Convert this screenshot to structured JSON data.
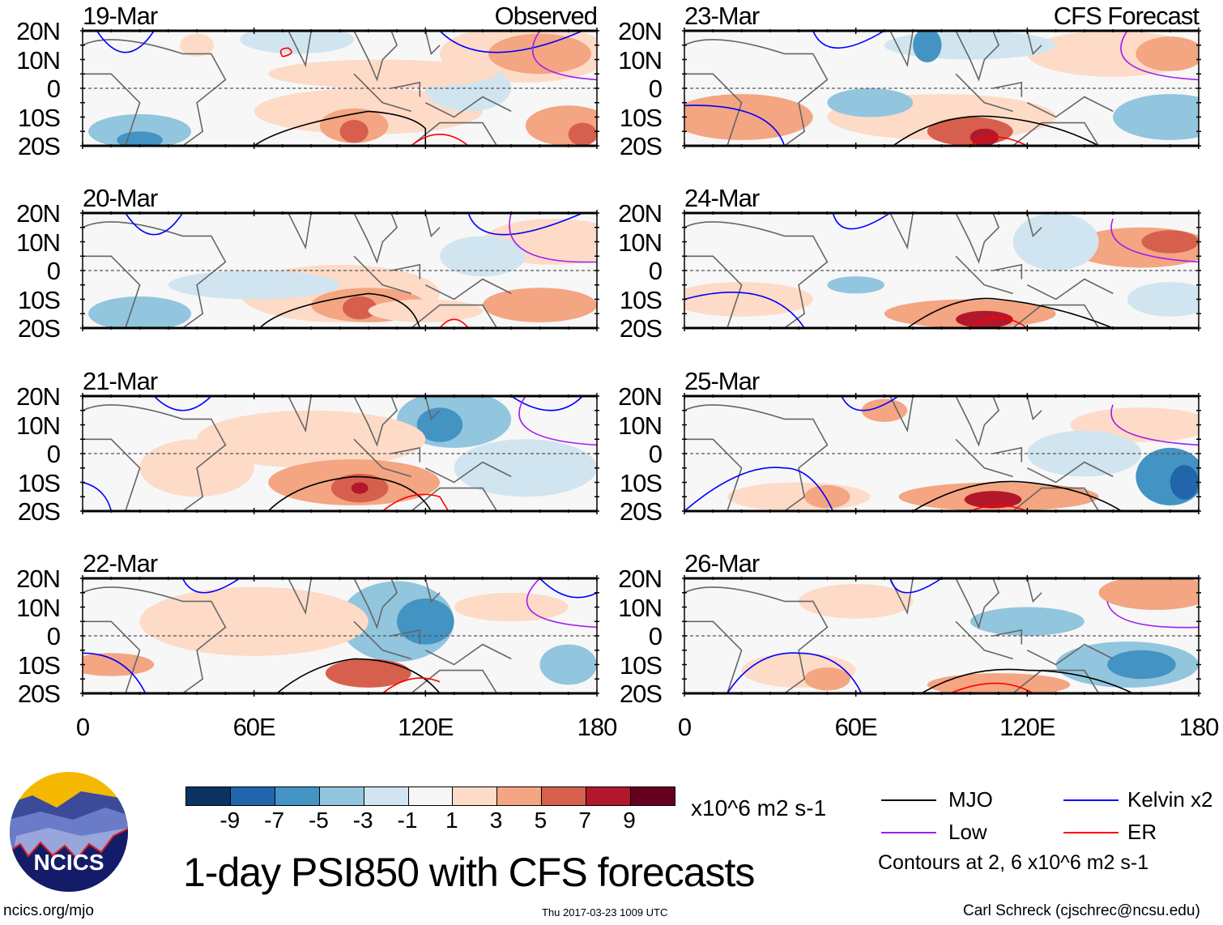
{
  "panels_left": [
    {
      "date": "19-Mar",
      "label": "Observed"
    },
    {
      "date": "20-Mar",
      "label": ""
    },
    {
      "date": "21-Mar",
      "label": ""
    },
    {
      "date": "22-Mar",
      "label": ""
    }
  ],
  "panels_right": [
    {
      "date": "23-Mar",
      "label": "CFS Forecast"
    },
    {
      "date": "24-Mar",
      "label": ""
    },
    {
      "date": "25-Mar",
      "label": ""
    },
    {
      "date": "26-Mar",
      "label": ""
    }
  ],
  "lat_ticks": [
    "20N",
    "10N",
    "0",
    "10S",
    "20S"
  ],
  "lon_ticks": [
    "0",
    "60E",
    "120E",
    "180"
  ],
  "colorbar": {
    "ticks": [
      "-9",
      "-7",
      "-5",
      "-3",
      "-1",
      "1",
      "3",
      "5",
      "7",
      "9"
    ],
    "colors": [
      "#0a3363",
      "#2166ac",
      "#4393c3",
      "#92c5de",
      "#d1e5f0",
      "#f7f7f7",
      "#fddbc7",
      "#f4a582",
      "#d6604d",
      "#b2182b",
      "#67001f"
    ],
    "units": "x10^6 m2 s-1"
  },
  "legend": {
    "items": [
      {
        "label": "MJO",
        "color": "#000000"
      },
      {
        "label": "Kelvin x2",
        "color": "#0000ff"
      },
      {
        "label": "Low",
        "color": "#a020f0"
      },
      {
        "label": "ER",
        "color": "#ff0000"
      }
    ],
    "contours_note": "Contours at 2, 6 x10^6 m2 s-1"
  },
  "logo": {
    "text": "NCICS"
  },
  "title": "1-day PSI850 with CFS forecasts",
  "footer": {
    "url": "ncics.org/mjo",
    "timestamp": "Thu 2017-03-23 1009 UTC",
    "author": "Carl Schreck (cjschrec@ncsu.edu)"
  }
}
